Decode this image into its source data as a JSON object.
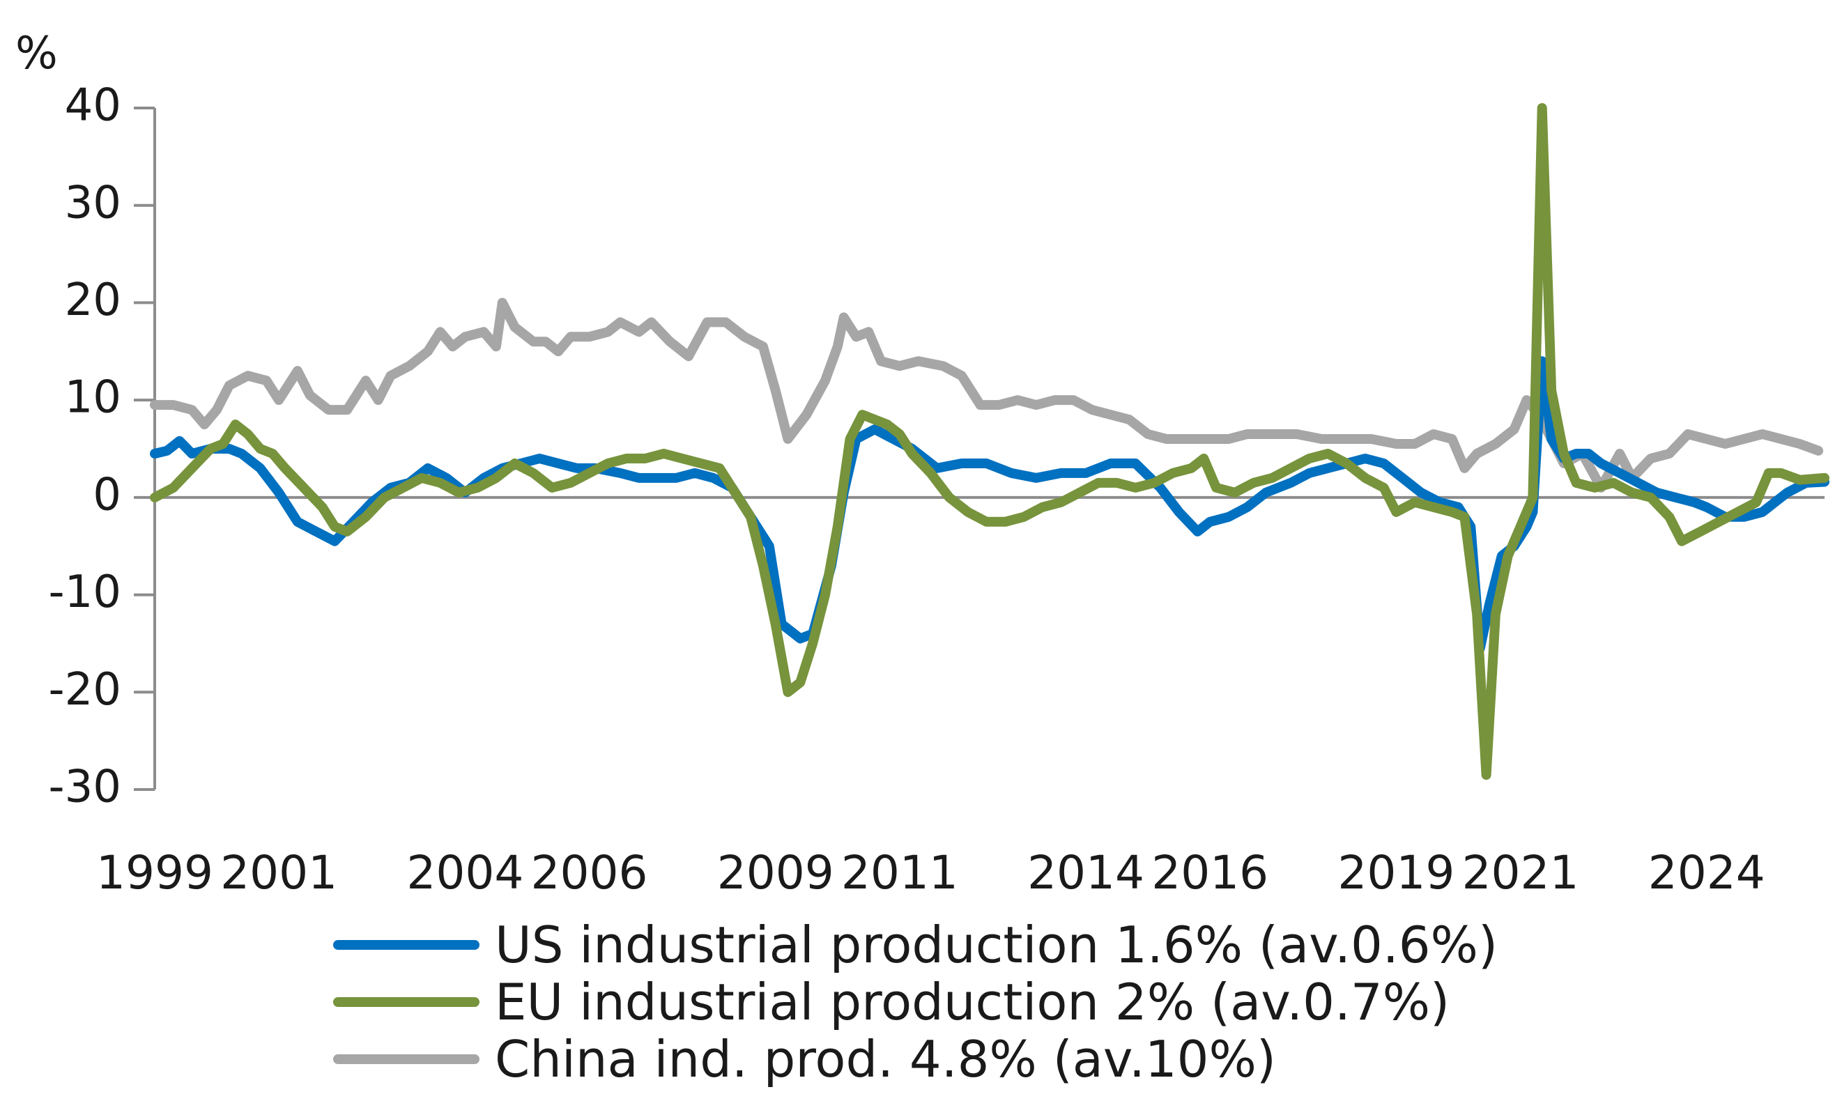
{
  "chart_data": {
    "type": "line",
    "title": "",
    "xlabel": "",
    "ylabel": "%",
    "ylim": [
      -30,
      40
    ],
    "xlim": [
      1999.0,
      2025.9
    ],
    "yticks": [
      40,
      30,
      20,
      10,
      0,
      -10,
      -20,
      -30
    ],
    "yticklabels": [
      "40",
      "30",
      "20",
      "10",
      "0",
      "-10",
      "-20",
      "-30"
    ],
    "xticks": [
      1999,
      2001,
      2004,
      2006,
      2009,
      2011,
      2014,
      2016,
      2019,
      2021,
      2024
    ],
    "xticklabels": [
      "1999",
      "2001",
      "2004",
      "2006",
      "2009",
      "2011",
      "2014",
      "2016",
      "2019",
      "2021",
      "2024"
    ],
    "series": [
      {
        "name": "China ind. prod. 4.8% (av.10%)",
        "color": "#a6a6a6",
        "points": [
          [
            1999.0,
            9.5
          ],
          [
            1999.3,
            9.5
          ],
          [
            1999.6,
            9.0
          ],
          [
            1999.8,
            7.5
          ],
          [
            2000.0,
            9.0
          ],
          [
            2000.2,
            11.5
          ],
          [
            2000.5,
            12.5
          ],
          [
            2000.8,
            12.0
          ],
          [
            2001.0,
            10.0
          ],
          [
            2001.3,
            13.0
          ],
          [
            2001.5,
            10.5
          ],
          [
            2001.8,
            9.0
          ],
          [
            2002.1,
            9.0
          ],
          [
            2002.4,
            12.0
          ],
          [
            2002.6,
            10.0
          ],
          [
            2002.8,
            12.5
          ],
          [
            2003.1,
            13.5
          ],
          [
            2003.4,
            15.0
          ],
          [
            2003.6,
            17.0
          ],
          [
            2003.8,
            15.5
          ],
          [
            2004.0,
            16.5
          ],
          [
            2004.3,
            17.0
          ],
          [
            2004.5,
            15.5
          ],
          [
            2004.6,
            20.0
          ],
          [
            2004.8,
            17.5
          ],
          [
            2005.1,
            16.0
          ],
          [
            2005.3,
            16.0
          ],
          [
            2005.5,
            15.0
          ],
          [
            2005.7,
            16.5
          ],
          [
            2006.0,
            16.5
          ],
          [
            2006.3,
            17.0
          ],
          [
            2006.5,
            18.0
          ],
          [
            2006.8,
            17.0
          ],
          [
            2007.0,
            18.0
          ],
          [
            2007.3,
            16.0
          ],
          [
            2007.6,
            14.5
          ],
          [
            2007.9,
            18.0
          ],
          [
            2008.2,
            18.0
          ],
          [
            2008.5,
            16.5
          ],
          [
            2008.8,
            15.5
          ],
          [
            2009.0,
            11.0
          ],
          [
            2009.2,
            6.0
          ],
          [
            2009.5,
            8.5
          ],
          [
            2009.8,
            12.0
          ],
          [
            2010.0,
            15.5
          ],
          [
            2010.1,
            18.5
          ],
          [
            2010.3,
            16.5
          ],
          [
            2010.5,
            17.0
          ],
          [
            2010.7,
            14.0
          ],
          [
            2011.0,
            13.5
          ],
          [
            2011.3,
            14.0
          ],
          [
            2011.7,
            13.5
          ],
          [
            2012.0,
            12.5
          ],
          [
            2012.3,
            9.5
          ],
          [
            2012.6,
            9.5
          ],
          [
            2012.9,
            10.0
          ],
          [
            2013.2,
            9.5
          ],
          [
            2013.5,
            10.0
          ],
          [
            2013.8,
            10.0
          ],
          [
            2014.1,
            9.0
          ],
          [
            2014.4,
            8.5
          ],
          [
            2014.7,
            8.0
          ],
          [
            2015.0,
            6.5
          ],
          [
            2015.3,
            6.0
          ],
          [
            2015.6,
            6.0
          ],
          [
            2016.0,
            6.0
          ],
          [
            2016.3,
            6.0
          ],
          [
            2016.6,
            6.5
          ],
          [
            2017.0,
            6.5
          ],
          [
            2017.4,
            6.5
          ],
          [
            2017.8,
            6.0
          ],
          [
            2018.2,
            6.0
          ],
          [
            2018.6,
            6.0
          ],
          [
            2019.0,
            5.5
          ],
          [
            2019.3,
            5.5
          ],
          [
            2019.6,
            6.5
          ],
          [
            2019.9,
            6.0
          ],
          [
            2020.1,
            3.0
          ],
          [
            2020.3,
            4.5
          ],
          [
            2020.6,
            5.5
          ],
          [
            2020.9,
            7.0
          ],
          [
            2021.1,
            10.0
          ],
          [
            2021.3,
            8.5
          ],
          [
            2021.5,
            6.0
          ],
          [
            2021.7,
            3.5
          ],
          [
            2022.0,
            4.5
          ],
          [
            2022.3,
            1.0
          ],
          [
            2022.6,
            4.5
          ],
          [
            2022.8,
            2.0
          ],
          [
            2023.1,
            4.0
          ],
          [
            2023.4,
            4.5
          ],
          [
            2023.7,
            6.5
          ],
          [
            2024.0,
            6.0
          ],
          [
            2024.3,
            5.5
          ],
          [
            2024.6,
            6.0
          ],
          [
            2024.9,
            6.5
          ],
          [
            2025.2,
            6.0
          ],
          [
            2025.5,
            5.5
          ],
          [
            2025.8,
            4.8
          ]
        ]
      },
      {
        "name": "US industrial production 1.6% (av.0.6%)",
        "color": "#0070c0",
        "points": [
          [
            1999.0,
            4.5
          ],
          [
            1999.2,
            4.8
          ],
          [
            1999.4,
            5.8
          ],
          [
            1999.6,
            4.5
          ],
          [
            1999.9,
            5.0
          ],
          [
            2000.2,
            5.0
          ],
          [
            2000.4,
            4.5
          ],
          [
            2000.7,
            3.0
          ],
          [
            2001.0,
            0.5
          ],
          [
            2001.3,
            -2.5
          ],
          [
            2001.6,
            -3.5
          ],
          [
            2001.9,
            -4.5
          ],
          [
            2002.2,
            -2.5
          ],
          [
            2002.5,
            -0.5
          ],
          [
            2002.8,
            1.0
          ],
          [
            2003.1,
            1.5
          ],
          [
            2003.4,
            3.0
          ],
          [
            2003.7,
            2.0
          ],
          [
            2004.0,
            0.5
          ],
          [
            2004.3,
            2.0
          ],
          [
            2004.6,
            3.0
          ],
          [
            2004.9,
            3.5
          ],
          [
            2005.2,
            4.0
          ],
          [
            2005.5,
            3.5
          ],
          [
            2005.8,
            3.0
          ],
          [
            2006.1,
            3.0
          ],
          [
            2006.5,
            2.5
          ],
          [
            2006.8,
            2.0
          ],
          [
            2007.1,
            2.0
          ],
          [
            2007.4,
            2.0
          ],
          [
            2007.7,
            2.5
          ],
          [
            2008.0,
            2.0
          ],
          [
            2008.3,
            1.0
          ],
          [
            2008.6,
            -2.0
          ],
          [
            2008.9,
            -5.0
          ],
          [
            2009.1,
            -13.0
          ],
          [
            2009.4,
            -14.5
          ],
          [
            2009.6,
            -14.0
          ],
          [
            2009.9,
            -7.0
          ],
          [
            2010.1,
            0.5
          ],
          [
            2010.3,
            6.0
          ],
          [
            2010.6,
            7.0
          ],
          [
            2010.9,
            6.0
          ],
          [
            2011.2,
            5.0
          ],
          [
            2011.6,
            3.0
          ],
          [
            2012.0,
            3.5
          ],
          [
            2012.4,
            3.5
          ],
          [
            2012.8,
            2.5
          ],
          [
            2013.2,
            2.0
          ],
          [
            2013.6,
            2.5
          ],
          [
            2014.0,
            2.5
          ],
          [
            2014.4,
            3.5
          ],
          [
            2014.8,
            3.5
          ],
          [
            2015.2,
            1.0
          ],
          [
            2015.5,
            -1.5
          ],
          [
            2015.8,
            -3.5
          ],
          [
            2016.0,
            -2.5
          ],
          [
            2016.3,
            -2.0
          ],
          [
            2016.6,
            -1.0
          ],
          [
            2016.9,
            0.5
          ],
          [
            2017.3,
            1.5
          ],
          [
            2017.6,
            2.5
          ],
          [
            2017.9,
            3.0
          ],
          [
            2018.2,
            3.5
          ],
          [
            2018.5,
            4.0
          ],
          [
            2018.8,
            3.5
          ],
          [
            2019.1,
            2.0
          ],
          [
            2019.4,
            0.5
          ],
          [
            2019.7,
            -0.5
          ],
          [
            2020.0,
            -1.0
          ],
          [
            2020.2,
            -3.0
          ],
          [
            2020.35,
            -15.5
          ],
          [
            2020.5,
            -11.0
          ],
          [
            2020.7,
            -6.0
          ],
          [
            2020.9,
            -5.0
          ],
          [
            2021.1,
            -3.0
          ],
          [
            2021.2,
            -1.5
          ],
          [
            2021.35,
            14.0
          ],
          [
            2021.5,
            6.0
          ],
          [
            2021.7,
            4.0
          ],
          [
            2021.9,
            4.5
          ],
          [
            2022.1,
            4.5
          ],
          [
            2022.3,
            3.5
          ],
          [
            2022.6,
            2.5
          ],
          [
            2022.9,
            1.5
          ],
          [
            2023.2,
            0.5
          ],
          [
            2023.5,
            0.0
          ],
          [
            2023.8,
            -0.5
          ],
          [
            2024.0,
            -1.0
          ],
          [
            2024.3,
            -2.0
          ],
          [
            2024.6,
            -2.0
          ],
          [
            2024.9,
            -1.5
          ],
          [
            2025.1,
            -0.5
          ],
          [
            2025.3,
            0.5
          ],
          [
            2025.6,
            1.5
          ],
          [
            2025.9,
            1.6
          ]
        ]
      },
      {
        "name": "EU industrial production 2% (av.0.7%)",
        "color": "#77933c",
        "points": [
          [
            1999.0,
            0.0
          ],
          [
            1999.3,
            1.0
          ],
          [
            1999.6,
            3.0
          ],
          [
            1999.9,
            5.0
          ],
          [
            2000.1,
            5.5
          ],
          [
            2000.3,
            7.5
          ],
          [
            2000.5,
            6.5
          ],
          [
            2000.7,
            5.0
          ],
          [
            2000.9,
            4.5
          ],
          [
            2001.1,
            3.0
          ],
          [
            2001.4,
            1.0
          ],
          [
            2001.7,
            -1.0
          ],
          [
            2001.9,
            -3.0
          ],
          [
            2002.1,
            -3.5
          ],
          [
            2002.4,
            -2.0
          ],
          [
            2002.7,
            0.0
          ],
          [
            2003.0,
            1.0
          ],
          [
            2003.3,
            2.0
          ],
          [
            2003.6,
            1.5
          ],
          [
            2003.9,
            0.5
          ],
          [
            2004.2,
            1.0
          ],
          [
            2004.5,
            2.0
          ],
          [
            2004.8,
            3.5
          ],
          [
            2005.1,
            2.5
          ],
          [
            2005.4,
            1.0
          ],
          [
            2005.7,
            1.5
          ],
          [
            2006.0,
            2.5
          ],
          [
            2006.3,
            3.5
          ],
          [
            2006.6,
            4.0
          ],
          [
            2006.9,
            4.0
          ],
          [
            2007.2,
            4.5
          ],
          [
            2007.5,
            4.0
          ],
          [
            2007.8,
            3.5
          ],
          [
            2008.1,
            3.0
          ],
          [
            2008.4,
            0.0
          ],
          [
            2008.6,
            -2.0
          ],
          [
            2008.8,
            -7.0
          ],
          [
            2009.0,
            -13.0
          ],
          [
            2009.2,
            -20.0
          ],
          [
            2009.4,
            -19.0
          ],
          [
            2009.6,
            -15.0
          ],
          [
            2009.8,
            -10.0
          ],
          [
            2010.0,
            -3.0
          ],
          [
            2010.2,
            6.0
          ],
          [
            2010.4,
            8.5
          ],
          [
            2010.6,
            8.0
          ],
          [
            2010.8,
            7.5
          ],
          [
            2011.0,
            6.5
          ],
          [
            2011.2,
            4.5
          ],
          [
            2011.5,
            2.5
          ],
          [
            2011.8,
            0.0
          ],
          [
            2012.1,
            -1.5
          ],
          [
            2012.4,
            -2.5
          ],
          [
            2012.7,
            -2.5
          ],
          [
            2013.0,
            -2.0
          ],
          [
            2013.3,
            -1.0
          ],
          [
            2013.6,
            -0.5
          ],
          [
            2013.9,
            0.5
          ],
          [
            2014.2,
            1.5
          ],
          [
            2014.5,
            1.5
          ],
          [
            2014.8,
            1.0
          ],
          [
            2015.1,
            1.5
          ],
          [
            2015.4,
            2.5
          ],
          [
            2015.7,
            3.0
          ],
          [
            2015.9,
            4.0
          ],
          [
            2016.1,
            1.0
          ],
          [
            2016.4,
            0.5
          ],
          [
            2016.7,
            1.5
          ],
          [
            2017.0,
            2.0
          ],
          [
            2017.3,
            3.0
          ],
          [
            2017.6,
            4.0
          ],
          [
            2017.9,
            4.5
          ],
          [
            2018.2,
            3.5
          ],
          [
            2018.5,
            2.0
          ],
          [
            2018.8,
            1.0
          ],
          [
            2019.0,
            -1.5
          ],
          [
            2019.3,
            -0.5
          ],
          [
            2019.6,
            -1.0
          ],
          [
            2019.9,
            -1.5
          ],
          [
            2020.1,
            -2.0
          ],
          [
            2020.3,
            -12.0
          ],
          [
            2020.45,
            -28.5
          ],
          [
            2020.6,
            -12.0
          ],
          [
            2020.8,
            -6.0
          ],
          [
            2021.0,
            -3.0
          ],
          [
            2021.2,
            0.0
          ],
          [
            2021.35,
            40.0
          ],
          [
            2021.5,
            11.0
          ],
          [
            2021.7,
            4.5
          ],
          [
            2021.9,
            1.5
          ],
          [
            2022.2,
            1.0
          ],
          [
            2022.5,
            1.5
          ],
          [
            2022.8,
            0.5
          ],
          [
            2023.1,
            0.0
          ],
          [
            2023.4,
            -2.0
          ],
          [
            2023.6,
            -4.5
          ],
          [
            2023.9,
            -3.5
          ],
          [
            2024.2,
            -2.5
          ],
          [
            2024.5,
            -1.5
          ],
          [
            2024.8,
            -0.5
          ],
          [
            2025.0,
            2.5
          ],
          [
            2025.2,
            2.5
          ],
          [
            2025.5,
            1.8
          ],
          [
            2025.9,
            2.0
          ]
        ]
      }
    ],
    "legend": [
      {
        "label": "US industrial production 1.6% (av.0.6%)",
        "color": "#0070c0"
      },
      {
        "label": "EU industrial production 2% (av.0.7%)",
        "color": "#77933c"
      },
      {
        "label": "China ind. prod. 4.8% (av.10%)",
        "color": "#a6a6a6"
      }
    ]
  }
}
